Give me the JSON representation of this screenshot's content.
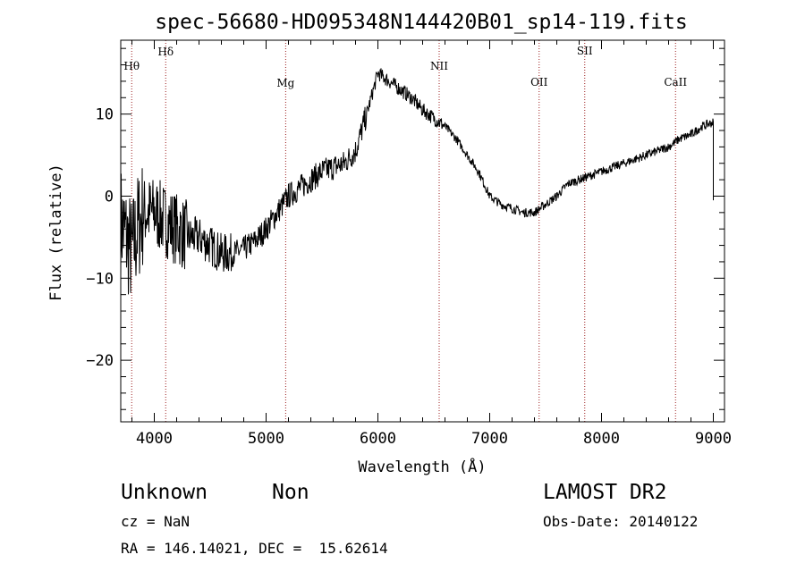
{
  "chart_data": {
    "type": "line",
    "title": "spec-56680-HD095348N144420B01_sp14-119.fits",
    "xlabel": "Wavelength (Å)",
    "ylabel": "Flux (relative)",
    "xlim": [
      3700,
      9100
    ],
    "ylim": [
      -27.5,
      19
    ],
    "x_ticks": [
      4000,
      5000,
      6000,
      7000,
      8000,
      9000
    ],
    "y_ticks": [
      -20,
      -10,
      0,
      10
    ],
    "x_tick_labels": [
      "4000",
      "5000",
      "6000",
      "7000",
      "8000",
      "9000"
    ],
    "y_tick_labels": [
      "−20",
      "−10",
      "0",
      "10"
    ],
    "grid": false,
    "lines": [
      {
        "name": "Hθ",
        "x": 3798
      },
      {
        "name": "Hδ",
        "x": 4102
      },
      {
        "name": "Mg",
        "x": 5175
      },
      {
        "name": "NII",
        "x": 6548
      },
      {
        "name": "OII",
        "x": 7442
      },
      {
        "name": "SII",
        "x": 7850
      },
      {
        "name": "CaII",
        "x": 8662
      }
    ],
    "series": [
      {
        "x": [
          3700,
          3750,
          3800,
          3850,
          3900,
          4000,
          4100,
          4200,
          4300,
          4400,
          4500,
          4600,
          4700,
          4800,
          4900,
          5000,
          5100,
          5200,
          5300,
          5400,
          5500,
          5600,
          5700,
          5800,
          5900,
          6000,
          6100,
          6200,
          6300,
          6400,
          6500,
          6600,
          6700,
          6800,
          6900,
          7000,
          7100,
          7200,
          7300,
          7400,
          7500,
          7600,
          7700,
          7800,
          7900,
          8000,
          8100,
          8200,
          8300,
          8400,
          8500,
          8600,
          8700,
          8800,
          8900,
          9000
        ],
        "y": [
          -3,
          -5,
          -7,
          -4,
          -2,
          -2,
          -3,
          -4,
          -5,
          -5,
          -6,
          -7,
          -7,
          -6.5,
          -5.5,
          -4,
          -2,
          0,
          1,
          2,
          3,
          3.5,
          4,
          5.5,
          10,
          15,
          14,
          13,
          12,
          10.5,
          9.5,
          8.5,
          7,
          5,
          3,
          0,
          -1,
          -1.5,
          -2,
          -2,
          -1,
          0,
          1.5,
          2,
          2.5,
          3,
          3.5,
          4,
          4.5,
          5,
          5.5,
          6,
          7,
          7.5,
          8.5,
          9
        ]
      }
    ]
  },
  "footer": {
    "class_label": "Unknown",
    "subclass_label": "Non",
    "survey": "LAMOST DR2",
    "cz": "cz = NaN",
    "obs_date": "Obs-Date: 20140122",
    "coords": "RA = 146.14021, DEC =  15.62614"
  }
}
